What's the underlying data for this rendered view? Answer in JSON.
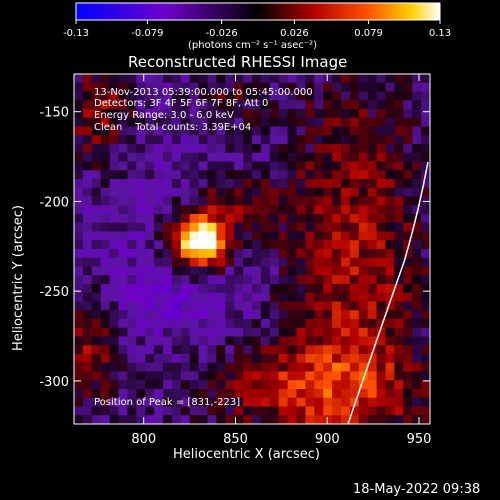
{
  "chart_data": {
    "type": "heatmap",
    "title": "Reconstructed RHESSI Image",
    "xlabel": "Heliocentric X (arcsec)",
    "ylabel": "Heliocentric Y (arcsec)",
    "xlim": [
      762,
      956
    ],
    "ylim": [
      -324,
      -129
    ],
    "xticks": [
      800,
      850,
      900,
      950
    ],
    "yticks": [
      -150,
      -200,
      -250,
      -300
    ],
    "colorbar": {
      "ticks": [
        "-0.13",
        "-0.079",
        "-0.026",
        "0.026",
        "0.079",
        "0.13"
      ],
      "range": [
        -0.13,
        0.13
      ],
      "unit_label": "(photons cm⁻² s⁻¹ asec⁻²)"
    },
    "info_lines": [
      "13-Nov-2013 05:39:00.000 to 05:45:00.000",
      "Detectors: 3F 4F 5F 6F 7F 8F, Att 0",
      "Energy Range: 3.0 - 6.0 keV",
      "Clean    Total counts: 3.39E+04"
    ],
    "peak_label": "Position of Peak = [831,-223]",
    "peak": [
      831,
      -223
    ],
    "footer_date": "18-May-2022 09:38"
  }
}
